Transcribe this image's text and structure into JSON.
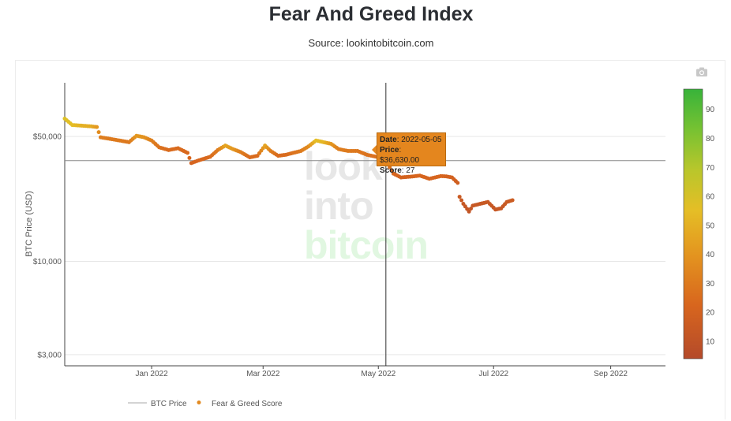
{
  "page": {
    "title": "Fear And Greed Index",
    "subtitle": "Source: lookintobitcoin.com"
  },
  "watermark": {
    "line1": "look",
    "line2": "into",
    "line3": "bitcoin"
  },
  "tooltip": {
    "date_label": "Date",
    "date_value": "2022-05-05",
    "price_label": "Price",
    "price_value": "$36,630.00",
    "score_label": "Score",
    "score_value": "27"
  },
  "colorbar": {
    "ticks": [
      "10",
      "20",
      "30",
      "40",
      "50",
      "60",
      "70",
      "80",
      "90"
    ],
    "colors": [
      "#b8522a",
      "#d96a1e",
      "#e28a22",
      "#e7b025",
      "#e3c02a",
      "#a6c72d",
      "#6cc233",
      "#3fb63a"
    ]
  },
  "chart_data": {
    "type": "scatter",
    "title": "Fear And Greed Index",
    "subtitle": "Source: lookintobitcoin.com",
    "ylabel": "BTC Price (USD)",
    "yscale": "log",
    "ylim": [
      2600,
      100000
    ],
    "xlim": [
      "2021-11-16",
      "2022-09-30"
    ],
    "y_ticks": [
      {
        "value": 50000,
        "label": "$50,000"
      },
      {
        "value": 10000,
        "label": "$10,000"
      },
      {
        "value": 3000,
        "label": "$3,000"
      }
    ],
    "x_ticks": [
      {
        "date": "2022-01-01",
        "label": "Jan 2022"
      },
      {
        "date": "2022-03-01",
        "label": "Mar 2022"
      },
      {
        "date": "2022-05-01",
        "label": "May 2022"
      },
      {
        "date": "2022-07-01",
        "label": "Jul 2022"
      },
      {
        "date": "2022-09-01",
        "label": "Sep 2022"
      }
    ],
    "legend": [
      "BTC Price",
      "Fear & Greed Score"
    ],
    "legend_position": "bottom",
    "crosshair": {
      "date": "2022-05-05",
      "price": 36630
    },
    "series": [
      {
        "name": "Fear & Greed Score",
        "points": [
          [
            "2021-11-16",
            63000,
            58
          ],
          [
            "2021-11-20",
            58000,
            55
          ],
          [
            "2021-11-25",
            57500,
            50
          ],
          [
            "2021-11-30",
            57000,
            48
          ],
          [
            "2021-12-03",
            56500,
            40
          ],
          [
            "2021-12-05",
            49500,
            30
          ],
          [
            "2021-12-10",
            48500,
            28
          ],
          [
            "2021-12-15",
            47500,
            28
          ],
          [
            "2021-12-20",
            46500,
            27
          ],
          [
            "2021-12-24",
            50500,
            40
          ],
          [
            "2021-12-28",
            49500,
            38
          ],
          [
            "2022-01-01",
            47500,
            30
          ],
          [
            "2022-01-05",
            43500,
            25
          ],
          [
            "2022-01-10",
            42000,
            22
          ],
          [
            "2022-01-15",
            43000,
            22
          ],
          [
            "2022-01-20",
            40500,
            21
          ],
          [
            "2022-01-22",
            35500,
            18
          ],
          [
            "2022-01-26",
            36800,
            20
          ],
          [
            "2022-02-01",
            38500,
            22
          ],
          [
            "2022-02-05",
            42000,
            28
          ],
          [
            "2022-02-09",
            44500,
            45
          ],
          [
            "2022-02-13",
            42500,
            40
          ],
          [
            "2022-02-17",
            41000,
            30
          ],
          [
            "2022-02-22",
            38200,
            22
          ],
          [
            "2022-02-26",
            39000,
            22
          ],
          [
            "2022-03-02",
            44500,
            45
          ],
          [
            "2022-03-05",
            41500,
            30
          ],
          [
            "2022-03-09",
            39000,
            22
          ],
          [
            "2022-03-13",
            39500,
            22
          ],
          [
            "2022-03-17",
            40500,
            25
          ],
          [
            "2022-03-21",
            41500,
            28
          ],
          [
            "2022-03-25",
            44000,
            35
          ],
          [
            "2022-03-29",
            47500,
            55
          ],
          [
            "2022-04-02",
            46500,
            52
          ],
          [
            "2022-04-06",
            45500,
            40
          ],
          [
            "2022-04-10",
            42500,
            30
          ],
          [
            "2022-04-15",
            41500,
            28
          ],
          [
            "2022-04-20",
            41500,
            27
          ],
          [
            "2022-04-25",
            39500,
            25
          ],
          [
            "2022-04-30",
            38500,
            24
          ],
          [
            "2022-05-05",
            36630,
            27
          ],
          [
            "2022-05-09",
            31000,
            20
          ],
          [
            "2022-05-13",
            29500,
            18
          ],
          [
            "2022-05-18",
            29800,
            18
          ],
          [
            "2022-05-23",
            30200,
            20
          ],
          [
            "2022-05-28",
            29000,
            18
          ],
          [
            "2022-06-03",
            30000,
            20
          ],
          [
            "2022-06-06",
            29900,
            18
          ],
          [
            "2022-06-09",
            29500,
            17
          ],
          [
            "2022-06-12",
            27500,
            15
          ],
          [
            "2022-06-13",
            23000,
            12
          ],
          [
            "2022-06-15",
            21000,
            10
          ],
          [
            "2022-06-18",
            19000,
            8
          ],
          [
            "2022-06-20",
            20500,
            10
          ],
          [
            "2022-06-24",
            21000,
            10
          ],
          [
            "2022-06-28",
            21500,
            11
          ],
          [
            "2022-07-02",
            19500,
            10
          ],
          [
            "2022-07-05",
            19800,
            10
          ],
          [
            "2022-07-08",
            21500,
            12
          ],
          [
            "2022-07-11",
            22000,
            13
          ]
        ]
      }
    ]
  }
}
